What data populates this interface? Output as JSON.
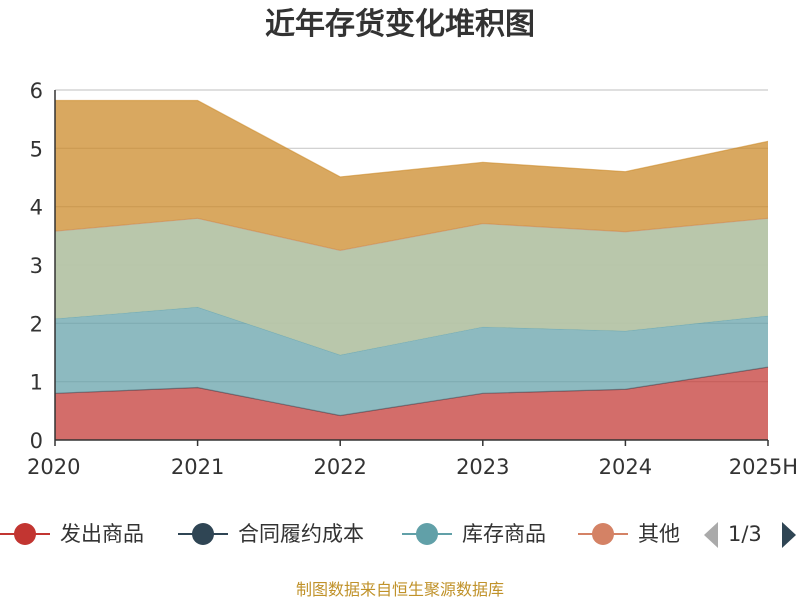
{
  "chart_data": {
    "type": "area",
    "stacked": true,
    "title": "近年存货变化堆积图",
    "ylabel": "",
    "categories": [
      "2020",
      "2021",
      "2022",
      "2023",
      "2024",
      "2025H"
    ],
    "ylim": [
      0,
      6
    ],
    "yticks": [
      "0",
      "1",
      "2",
      "3",
      "4",
      "5",
      "6"
    ],
    "grid": true,
    "series": [
      {
        "name": "发出商品",
        "color": "#c23531",
        "values": [
          0.8,
          0.9,
          0.42,
          0.8,
          0.87,
          1.25
        ]
      },
      {
        "name": "合同履约成本",
        "color": "#2f4554",
        "values": [
          0,
          0,
          0,
          0,
          0,
          0
        ]
      },
      {
        "name": "库存商品",
        "color": "#61a0a8",
        "values": [
          1.28,
          1.38,
          1.04,
          1.14,
          1.0,
          0.88
        ]
      },
      {
        "name": "其他",
        "color": "#d48265",
        "values": [
          1.5,
          1.52,
          1.79,
          1.77,
          1.7,
          1.67
        ]
      },
      {
        "name": "",
        "color": "#ca8622",
        "values": [
          2.24,
          2.02,
          1.26,
          1.05,
          1.03,
          1.32
        ]
      }
    ],
    "legend_position": "bottom"
  },
  "legend": {
    "items": [
      {
        "label": "发出商品",
        "color": "#c23531"
      },
      {
        "label": "合同履约成本",
        "color": "#2f4554"
      },
      {
        "label": "库存商品",
        "color": "#61a0a8"
      },
      {
        "label": "其他",
        "color": "#d48265"
      }
    ],
    "page": "1/3",
    "prev_icon": "triangle-left-icon",
    "next_icon": "triangle-right-icon"
  },
  "source": "制图数据来自恒生聚源数据库",
  "colors": {
    "grid": "#cccccc",
    "axis": "#333333",
    "fill_overlay": "#b5c4a6",
    "pager_active": "#2f4554",
    "pager_inactive": "#aaaaaa"
  }
}
